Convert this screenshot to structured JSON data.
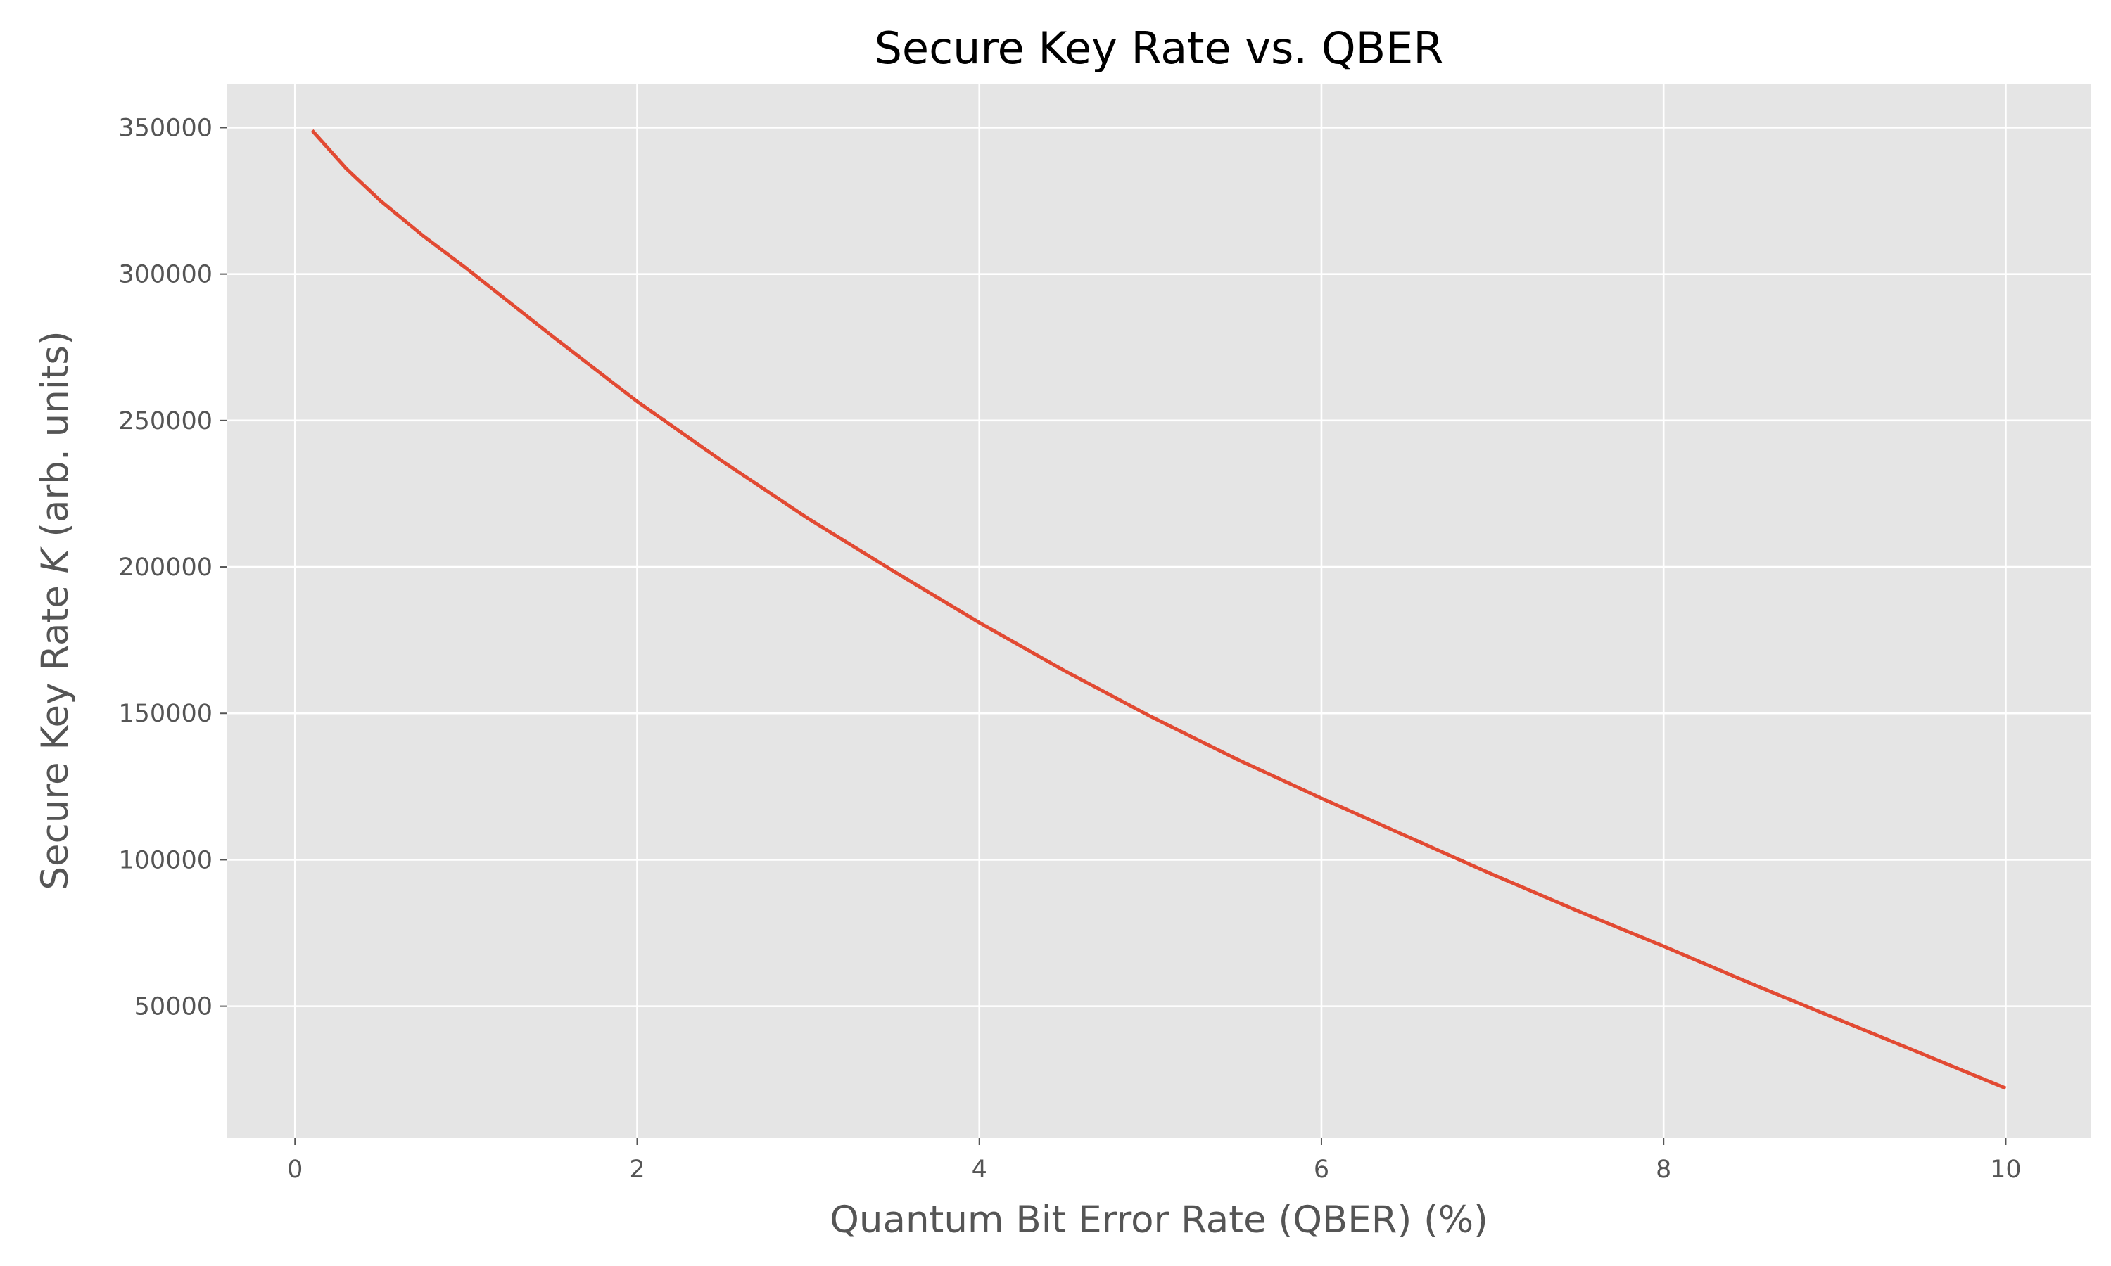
{
  "chart_data": {
    "type": "line",
    "title": "Secure Key Rate vs. QBER",
    "xlabel": "Quantum Bit Error Rate (QBER) (%)",
    "ylabel_prefix": "Secure Key Rate ",
    "ylabel_symbol": "K",
    "ylabel_suffix": " (arb. units)",
    "xlim": [
      -0.4,
      10.5
    ],
    "ylim": [
      5000,
      365000
    ],
    "x_ticks": [
      0,
      2,
      4,
      6,
      8,
      10
    ],
    "x_tick_labels": [
      "0",
      "2",
      "4",
      "6",
      "8",
      "10"
    ],
    "y_ticks": [
      50000,
      100000,
      150000,
      200000,
      250000,
      300000,
      350000
    ],
    "y_tick_labels": [
      "50000",
      "100000",
      "150000",
      "200000",
      "250000",
      "300000",
      "350000"
    ],
    "grid": true,
    "background": "#e5e5e5",
    "series": [
      {
        "color": "#e24a33",
        "x": [
          0.1,
          0.3,
          0.5,
          0.75,
          1.0,
          1.5,
          2.0,
          2.5,
          3.0,
          3.5,
          4.0,
          4.5,
          5.0,
          5.5,
          6.0,
          6.5,
          7.0,
          7.5,
          8.0,
          8.5,
          9.0,
          9.5,
          10.0
        ],
        "values": [
          349000,
          336000,
          325000,
          313000,
          302000,
          279000,
          256500,
          236000,
          216500,
          198500,
          181000,
          164500,
          149000,
          134500,
          121000,
          108000,
          95000,
          82500,
          70500,
          58000,
          46000,
          34000,
          22000
        ]
      }
    ]
  }
}
